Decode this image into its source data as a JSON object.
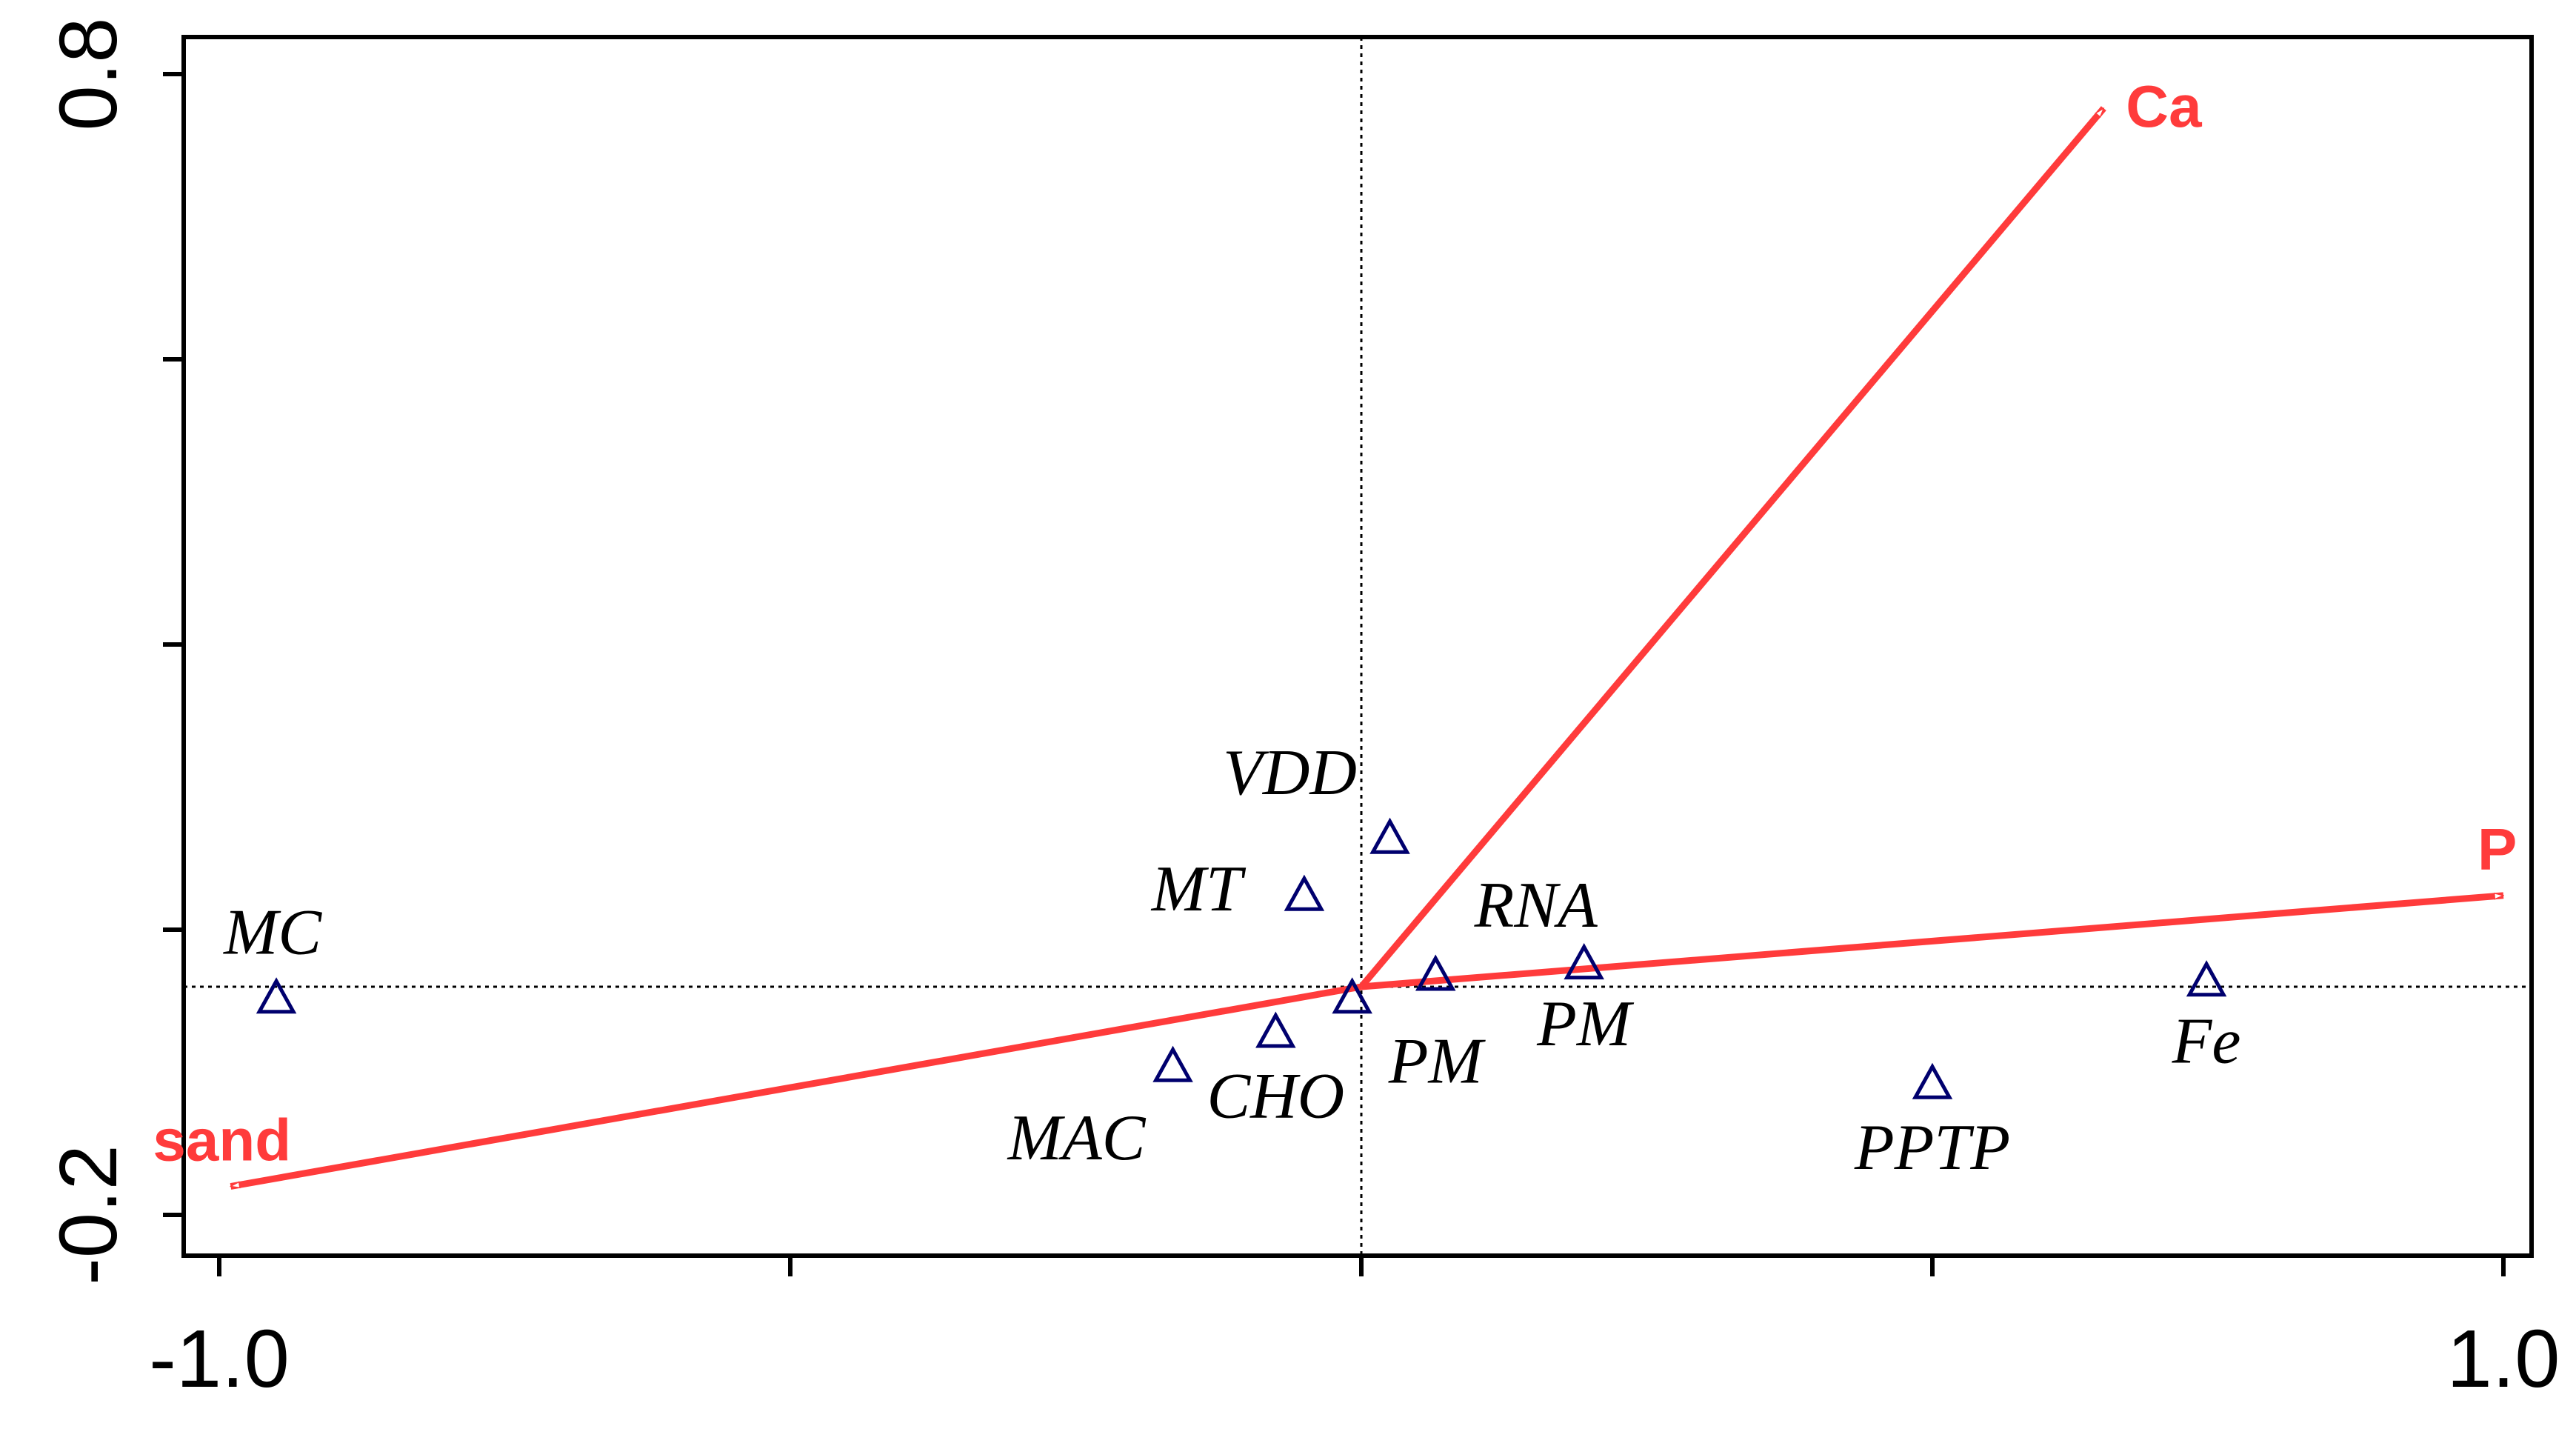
{
  "chart_data": {
    "type": "scatter",
    "subtype": "ordination-biplot",
    "title": "",
    "xlabel": "",
    "ylabel": "",
    "xlim": [
      -1.0,
      1.0
    ],
    "ylim": [
      -0.2,
      0.8
    ],
    "x_tick_labels": [
      "-1.0",
      "1.0"
    ],
    "y_tick_labels": [
      "-0.2",
      "0.8"
    ],
    "grid": false,
    "reference_lines": [
      "x=0",
      "y=0"
    ],
    "colors": {
      "species": "#00006e",
      "env": "#ff3b3b",
      "axis": "#000000"
    },
    "species": [
      {
        "label": "MC",
        "x": -0.95,
        "y": -0.01
      },
      {
        "label": "MT",
        "x": -0.05,
        "y": 0.08
      },
      {
        "label": "VDD",
        "x": 0.025,
        "y": 0.13
      },
      {
        "label": "RNA",
        "x": 0.195,
        "y": 0.02
      },
      {
        "label": "PM",
        "x": 0.065,
        "y": 0.01
      },
      {
        "label": "PM",
        "x": -0.008,
        "y": -0.01
      },
      {
        "label": "CHO",
        "x": -0.075,
        "y": -0.04
      },
      {
        "label": "MAC",
        "x": -0.165,
        "y": -0.07
      },
      {
        "label": "PPTP",
        "x": 0.5,
        "y": -0.085
      },
      {
        "label": "Fe",
        "x": 0.74,
        "y": 0.005
      }
    ],
    "environment": [
      {
        "label": "Ca",
        "x": 0.65,
        "y": 0.77
      },
      {
        "label": "P",
        "x": 1.0,
        "y": 0.08
      },
      {
        "label": "sand",
        "x": -0.99,
        "y": -0.175
      }
    ]
  }
}
